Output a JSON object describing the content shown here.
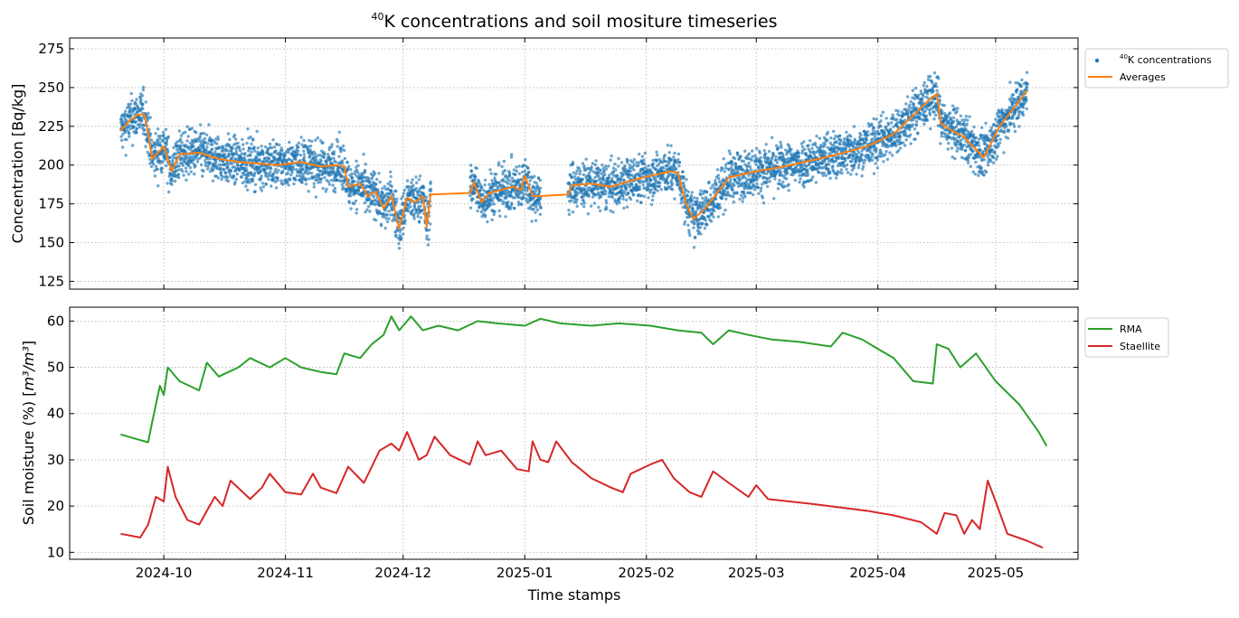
{
  "figure": {
    "title_sup": "40",
    "title_main": "K concentrations and soil mositure timeseries",
    "xlabel": "Time stamps"
  },
  "chart_data": [
    {
      "type": "scatter",
      "panel": "top",
      "ylabel": "Concentration [Bq/kg]",
      "ylim": [
        120,
        282
      ],
      "yticks": [
        125,
        150,
        175,
        200,
        225,
        250,
        275
      ],
      "xlim": [
        "2024-09-07",
        "2025-05-22"
      ],
      "xticks": [
        "2024-10",
        "2024-11",
        "2024-12",
        "2025-01",
        "2025-02",
        "2025-03",
        "2025-04",
        "2025-05"
      ],
      "grid": true,
      "legend_position": "outside-right-top",
      "series": [
        {
          "name_sup": "40",
          "name": "K concentrations",
          "kind": "scatter",
          "color": "#1f77b4",
          "note": "dense hourly scatter, approx ±12 Bq/kg around the averages; gaps 2024-12-08 to 2024-12-18 and 2025-01-05 to 2025-01-12"
        },
        {
          "name": "Averages",
          "kind": "line",
          "color": "#ff7f0e",
          "points": [
            [
              "2024-09-20",
              222
            ],
            [
              "2024-09-22",
              228
            ],
            [
              "2024-09-24",
              232
            ],
            [
              "2024-09-26",
              233
            ],
            [
              "2024-09-27",
              221
            ],
            [
              "2024-09-28",
              204
            ],
            [
              "2024-10-01",
              212
            ],
            [
              "2024-10-03",
              196
            ],
            [
              "2024-10-05",
              207
            ],
            [
              "2024-10-10",
              208
            ],
            [
              "2024-10-15",
              204
            ],
            [
              "2024-10-20",
              202
            ],
            [
              "2024-10-25",
              201
            ],
            [
              "2024-10-30",
              200
            ],
            [
              "2024-11-05",
              202
            ],
            [
              "2024-11-10",
              199
            ],
            [
              "2024-11-14",
              200
            ],
            [
              "2024-11-16",
              199
            ],
            [
              "2024-11-17",
              186
            ],
            [
              "2024-11-20",
              188
            ],
            [
              "2024-11-22",
              180
            ],
            [
              "2024-11-24",
              183
            ],
            [
              "2024-11-26",
              172
            ],
            [
              "2024-11-28",
              180
            ],
            [
              "2024-11-30",
              159
            ],
            [
              "2024-12-02",
              179
            ],
            [
              "2024-12-04",
              176
            ],
            [
              "2024-12-06",
              180
            ],
            [
              "2024-12-07",
              160
            ],
            [
              "2024-12-08",
              181
            ],
            [
              "2024-12-18",
              182
            ],
            [
              "2024-12-19",
              189
            ],
            [
              "2024-12-21",
              176
            ],
            [
              "2024-12-23",
              182
            ],
            [
              "2024-12-26",
              184
            ],
            [
              "2024-12-29",
              186
            ],
            [
              "2024-12-31",
              184
            ],
            [
              "2025-01-01",
              193
            ],
            [
              "2025-01-03",
              180
            ],
            [
              "2025-01-05",
              180
            ],
            [
              "2025-01-12",
              181
            ],
            [
              "2025-01-13",
              187
            ],
            [
              "2025-01-18",
              188
            ],
            [
              "2025-01-23",
              186
            ],
            [
              "2025-01-28",
              190
            ],
            [
              "2025-02-02",
              193
            ],
            [
              "2025-02-07",
              196
            ],
            [
              "2025-02-09",
              195
            ],
            [
              "2025-02-11",
              176
            ],
            [
              "2025-02-13",
              165
            ],
            [
              "2025-02-16",
              172
            ],
            [
              "2025-02-19",
              182
            ],
            [
              "2025-02-22",
              192
            ],
            [
              "2025-03-01",
              196
            ],
            [
              "2025-03-08",
              199
            ],
            [
              "2025-03-15",
              203
            ],
            [
              "2025-03-22",
              207
            ],
            [
              "2025-03-29",
              212
            ],
            [
              "2025-04-05",
              220
            ],
            [
              "2025-04-10",
              232
            ],
            [
              "2025-04-14",
              242
            ],
            [
              "2025-04-16",
              246
            ],
            [
              "2025-04-17",
              227
            ],
            [
              "2025-04-20",
              222
            ],
            [
              "2025-04-23",
              218
            ],
            [
              "2025-04-26",
              210
            ],
            [
              "2025-04-28",
              205
            ],
            [
              "2025-05-02",
              225
            ],
            [
              "2025-05-06",
              238
            ],
            [
              "2025-05-09",
              248
            ]
          ]
        }
      ]
    },
    {
      "type": "line",
      "panel": "bottom",
      "ylabel_main": "Soil moisture (%) [",
      "ylabel_unit": "m³/m³",
      "ylabel_end": "]",
      "ylim": [
        8.5,
        63
      ],
      "yticks": [
        10,
        20,
        30,
        40,
        50,
        60
      ],
      "grid": true,
      "legend_position": "outside-right-top",
      "series": [
        {
          "name": "RMA",
          "color": "#2ca02c",
          "points": [
            [
              "2024-09-20",
              35.5
            ],
            [
              "2024-09-24",
              34.5
            ],
            [
              "2024-09-27",
              33.8
            ],
            [
              "2024-09-28",
              38
            ],
            [
              "2024-09-30",
              46
            ],
            [
              "2024-10-01",
              44
            ],
            [
              "2024-10-02",
              50
            ],
            [
              "2024-10-05",
              47
            ],
            [
              "2024-10-10",
              45
            ],
            [
              "2024-10-12",
              51
            ],
            [
              "2024-10-15",
              48
            ],
            [
              "2024-10-20",
              50
            ],
            [
              "2024-10-23",
              52
            ],
            [
              "2024-10-28",
              50
            ],
            [
              "2024-11-01",
              52
            ],
            [
              "2024-11-05",
              50
            ],
            [
              "2024-11-10",
              49
            ],
            [
              "2024-11-14",
              48.5
            ],
            [
              "2024-11-16",
              53
            ],
            [
              "2024-11-20",
              52
            ],
            [
              "2024-11-23",
              55
            ],
            [
              "2024-11-26",
              57
            ],
            [
              "2024-11-28",
              61
            ],
            [
              "2024-11-30",
              58
            ],
            [
              "2024-12-03",
              61
            ],
            [
              "2024-12-06",
              58
            ],
            [
              "2024-12-10",
              59
            ],
            [
              "2024-12-15",
              58
            ],
            [
              "2024-12-20",
              60
            ],
            [
              "2024-12-25",
              59.5
            ],
            [
              "2025-01-01",
              59
            ],
            [
              "2025-01-05",
              60.5
            ],
            [
              "2025-01-10",
              59.5
            ],
            [
              "2025-01-18",
              59
            ],
            [
              "2025-01-25",
              59.5
            ],
            [
              "2025-02-02",
              59
            ],
            [
              "2025-02-09",
              58
            ],
            [
              "2025-02-15",
              57.5
            ],
            [
              "2025-02-18",
              55
            ],
            [
              "2025-02-22",
              58
            ],
            [
              "2025-02-27",
              57
            ],
            [
              "2025-03-05",
              56
            ],
            [
              "2025-03-12",
              55.5
            ],
            [
              "2025-03-20",
              54.5
            ],
            [
              "2025-03-23",
              57.5
            ],
            [
              "2025-03-28",
              56
            ],
            [
              "2025-04-01",
              54
            ],
            [
              "2025-04-05",
              52
            ],
            [
              "2025-04-10",
              47
            ],
            [
              "2025-04-15",
              46.5
            ],
            [
              "2025-04-16",
              55
            ],
            [
              "2025-04-19",
              54
            ],
            [
              "2025-04-22",
              50
            ],
            [
              "2025-04-26",
              53
            ],
            [
              "2025-05-01",
              47
            ],
            [
              "2025-05-07",
              42
            ],
            [
              "2025-05-12",
              36
            ],
            [
              "2025-05-14",
              33
            ]
          ]
        },
        {
          "name": "Staellite",
          "color": "#d62728",
          "points": [
            [
              "2024-09-20",
              14
            ],
            [
              "2024-09-25",
              13.2
            ],
            [
              "2024-09-27",
              16
            ],
            [
              "2024-09-29",
              22
            ],
            [
              "2024-10-01",
              21
            ],
            [
              "2024-10-02",
              28.5
            ],
            [
              "2024-10-04",
              22
            ],
            [
              "2024-10-07",
              17
            ],
            [
              "2024-10-10",
              16
            ],
            [
              "2024-10-14",
              22
            ],
            [
              "2024-10-16",
              20
            ],
            [
              "2024-10-18",
              25.5
            ],
            [
              "2024-10-23",
              21.5
            ],
            [
              "2024-10-26",
              24
            ],
            [
              "2024-10-28",
              27
            ],
            [
              "2024-11-01",
              23
            ],
            [
              "2024-11-05",
              22.5
            ],
            [
              "2024-11-08",
              27
            ],
            [
              "2024-11-10",
              24
            ],
            [
              "2024-11-14",
              22.8
            ],
            [
              "2024-11-17",
              28.5
            ],
            [
              "2024-11-21",
              25
            ],
            [
              "2024-11-25",
              32
            ],
            [
              "2024-11-28",
              33.5
            ],
            [
              "2024-11-30",
              32
            ],
            [
              "2024-12-02",
              36
            ],
            [
              "2024-12-05",
              30
            ],
            [
              "2024-12-07",
              31
            ],
            [
              "2024-12-09",
              35
            ],
            [
              "2024-12-13",
              31
            ],
            [
              "2024-12-18",
              29
            ],
            [
              "2024-12-20",
              34
            ],
            [
              "2024-12-22",
              31
            ],
            [
              "2024-12-26",
              32
            ],
            [
              "2024-12-30",
              28
            ],
            [
              "2025-01-02",
              27.5
            ],
            [
              "2025-01-03",
              34
            ],
            [
              "2025-01-05",
              30
            ],
            [
              "2025-01-07",
              29.5
            ],
            [
              "2025-01-09",
              34
            ],
            [
              "2025-01-13",
              29.5
            ],
            [
              "2025-01-18",
              26
            ],
            [
              "2025-01-23",
              24
            ],
            [
              "2025-01-26",
              23
            ],
            [
              "2025-01-28",
              27
            ],
            [
              "2025-02-02",
              29
            ],
            [
              "2025-02-05",
              30
            ],
            [
              "2025-02-08",
              26
            ],
            [
              "2025-02-12",
              23
            ],
            [
              "2025-02-15",
              22
            ],
            [
              "2025-02-18",
              27.5
            ],
            [
              "2025-02-22",
              25
            ],
            [
              "2025-02-27",
              22
            ],
            [
              "2025-03-01",
              24.5
            ],
            [
              "2025-03-04",
              21.5
            ],
            [
              "2025-03-15",
              20.5
            ],
            [
              "2025-03-29",
              19
            ],
            [
              "2025-04-05",
              18
            ],
            [
              "2025-04-12",
              16.5
            ],
            [
              "2025-04-16",
              14
            ],
            [
              "2025-04-18",
              18.5
            ],
            [
              "2025-04-21",
              18
            ],
            [
              "2025-04-23",
              14
            ],
            [
              "2025-04-25",
              17
            ],
            [
              "2025-04-27",
              15
            ],
            [
              "2025-04-29",
              25.5
            ],
            [
              "2025-05-01",
              21
            ],
            [
              "2025-05-04",
              14
            ],
            [
              "2025-05-09",
              12.5
            ],
            [
              "2025-05-13",
              11
            ]
          ]
        }
      ]
    }
  ]
}
